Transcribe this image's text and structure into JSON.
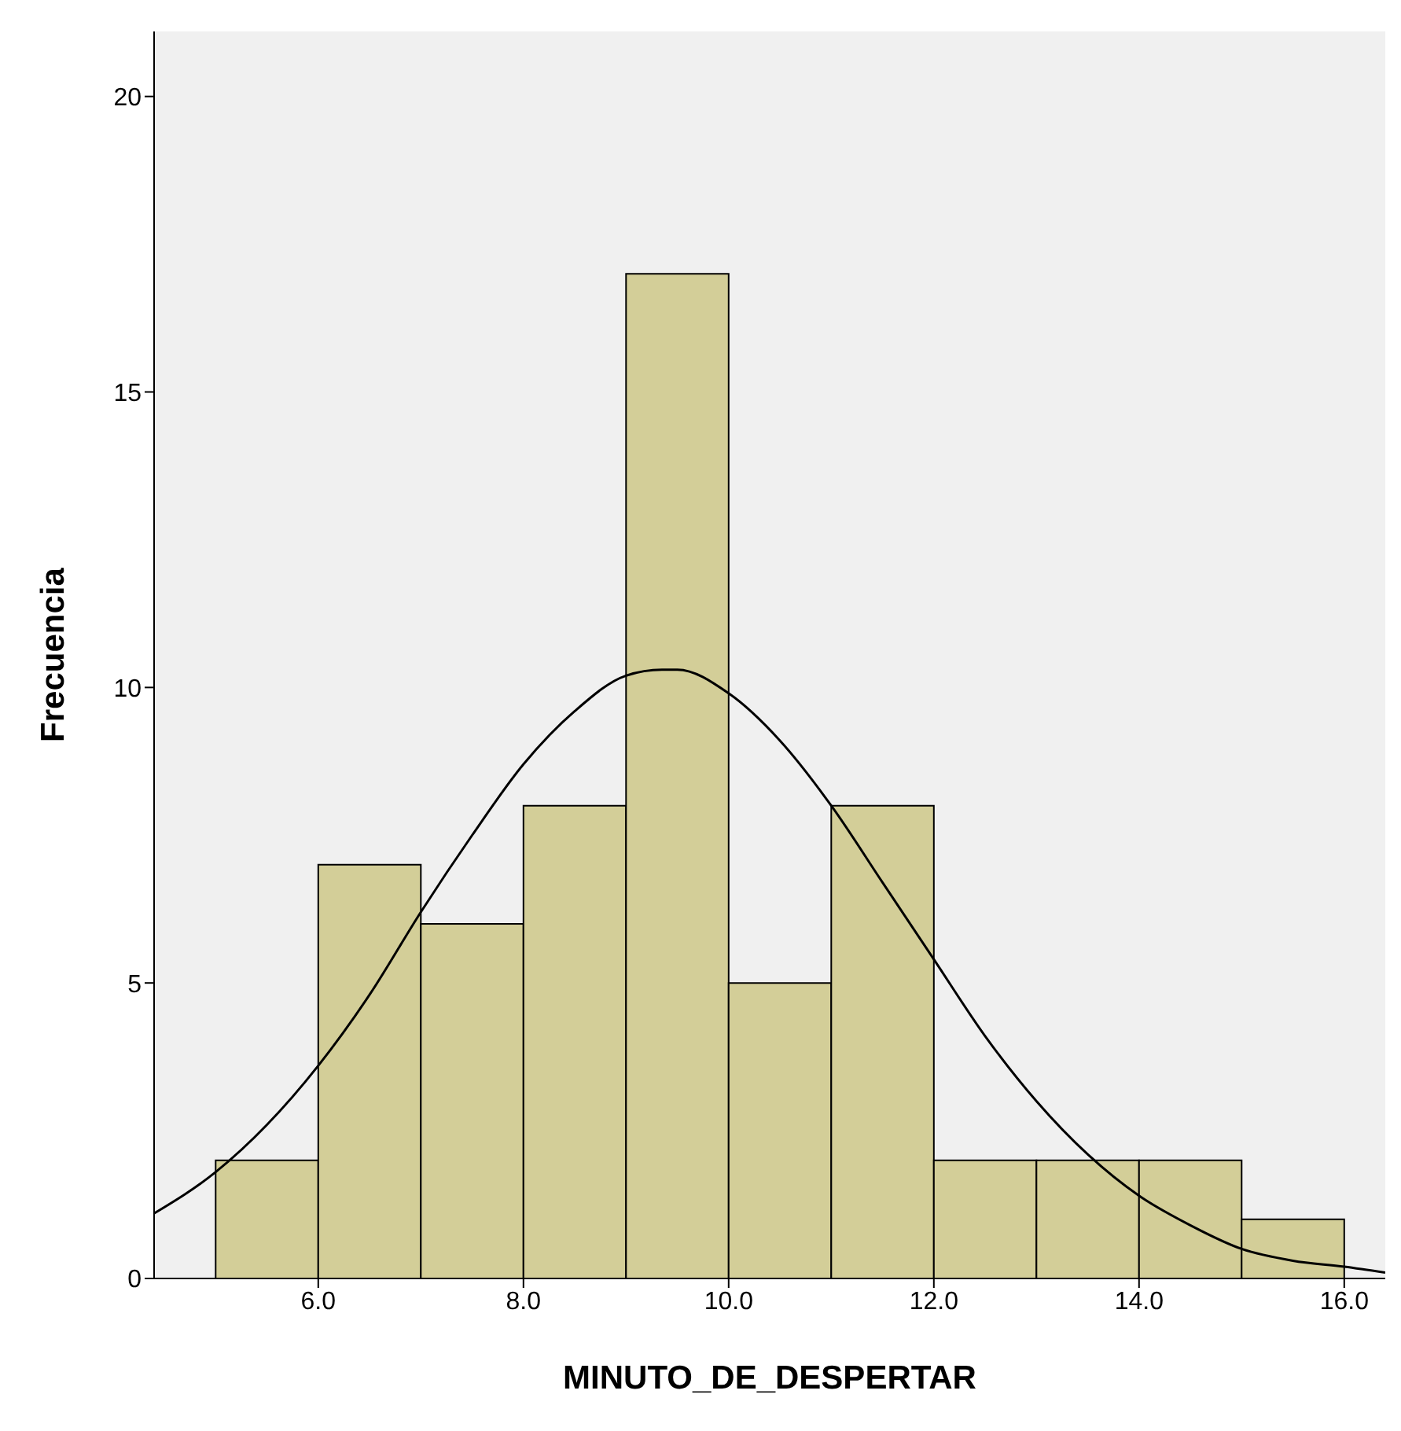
{
  "chart_data": {
    "type": "histogram",
    "xlabel": "MINUTO_DE_DESPERTAR",
    "ylabel": "Frecuencia",
    "bins": [
      5,
      6,
      7,
      8,
      9,
      10,
      11,
      12,
      13,
      14,
      15,
      16
    ],
    "values": [
      2,
      7,
      6,
      8,
      17,
      5,
      8,
      2,
      2,
      2,
      1
    ],
    "color": "#d3ce98",
    "xlim": [
      4.4,
      16.4
    ],
    "xticks": [
      {
        "value": 6,
        "label": "6.0"
      },
      {
        "value": 8,
        "label": "8.0"
      },
      {
        "value": 10,
        "label": "10.0"
      },
      {
        "value": 12,
        "label": "12.0"
      },
      {
        "value": 14,
        "label": "14.0"
      },
      {
        "value": 16,
        "label": "16.0"
      }
    ],
    "ylim": [
      0,
      21.1
    ],
    "yticks": [
      0,
      5,
      10,
      15,
      20
    ],
    "series": [
      {
        "type": "line",
        "color": "#000000",
        "x": [
          4.4,
          5,
          5.5,
          6,
          6.5,
          7,
          7.5,
          8,
          8.5,
          9,
          9.35,
          9.5,
          10,
          10.5,
          11,
          11.5,
          12,
          12.5,
          13,
          13.5,
          14,
          14.5,
          15,
          15.5,
          16,
          16.4
        ],
        "values": [
          1.1,
          1.8,
          2.6,
          3.6,
          4.8,
          6.2,
          7.5,
          8.7,
          9.6,
          10.2,
          10.3,
          10.3,
          9.9,
          9.1,
          8.0,
          6.7,
          5.4,
          4.1,
          3.0,
          2.1,
          1.4,
          0.9,
          0.5,
          0.3,
          0.2,
          0.1
        ]
      }
    ],
    "marker": "none",
    "line_style": "solid"
  }
}
